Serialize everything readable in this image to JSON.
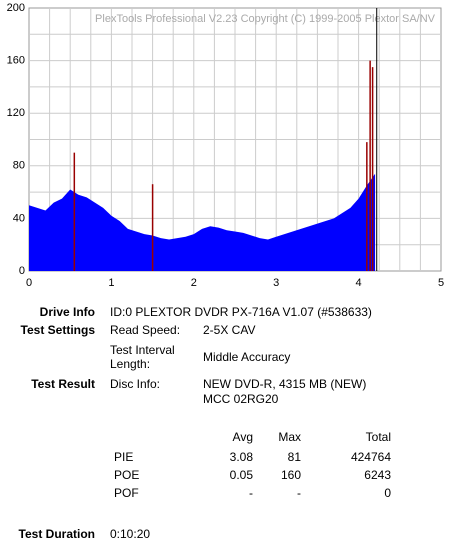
{
  "chart_data": {
    "type": "area",
    "watermark": "PlexTools Professional V2.23 Copyright (C) 1999-2005 Plextor SA/NV",
    "xlim": [
      0,
      5
    ],
    "xticks": [
      0,
      1,
      2,
      3,
      4,
      5
    ],
    "ylim": [
      0,
      200
    ],
    "yticks": [
      0,
      40,
      80,
      120,
      160,
      200
    ],
    "xgrid": [
      0.25,
      0.5,
      0.75,
      1,
      1.25,
      1.5,
      1.75,
      2,
      2.25,
      2.5,
      2.75,
      3,
      3.25,
      3.5,
      3.75,
      4,
      4.25,
      4.5,
      4.75
    ],
    "ygrid": [
      20,
      40,
      60,
      80,
      100,
      120,
      140,
      160,
      180
    ],
    "cursor_x": 4.22,
    "series": [
      {
        "color": "#0000ff",
        "x": [
          0,
          0.1,
          0.2,
          0.3,
          0.4,
          0.5,
          0.6,
          0.7,
          0.8,
          0.9,
          1,
          1.1,
          1.2,
          1.3,
          1.4,
          1.5,
          1.6,
          1.7,
          1.8,
          1.9,
          2,
          2.1,
          2.2,
          2.3,
          2.4,
          2.5,
          2.6,
          2.7,
          2.8,
          2.9,
          3,
          3.1,
          3.2,
          3.3,
          3.4,
          3.5,
          3.6,
          3.7,
          3.8,
          3.9,
          4,
          4.1,
          4.2
        ],
        "values": [
          50,
          48,
          46,
          52,
          55,
          62,
          58,
          56,
          52,
          48,
          42,
          38,
          32,
          30,
          28,
          27,
          25,
          24,
          25,
          26,
          28,
          32,
          34,
          33,
          31,
          30,
          29,
          27,
          25,
          24,
          26,
          28,
          30,
          32,
          34,
          36,
          38,
          40,
          44,
          48,
          55,
          65,
          74
        ]
      },
      {
        "color": "#990000",
        "x": [
          0.55,
          1.5,
          4.1,
          4.14,
          4.17
        ],
        "values": [
          90,
          66,
          98,
          160,
          155
        ]
      }
    ]
  },
  "report": {
    "drive_info": {
      "label": "Drive Info",
      "value": "ID:0 PLEXTOR DVDR PX-716A V1.07 (#538633)"
    },
    "test_settings": {
      "label": "Test Settings",
      "read_speed_label": "Read Speed:",
      "read_speed": "2-5X CAV",
      "interval_label": "Test Interval Length:",
      "interval": "Middle Accuracy"
    },
    "test_result": {
      "label": "Test Result",
      "disc_info_label": "Disc Info:",
      "disc_info": "NEW DVD-R, 4315 MB (NEW)",
      "disc_id": "MCC 02RG20"
    },
    "stats": {
      "header": [
        "Avg",
        "Max",
        "Total"
      ],
      "rows": [
        [
          "PIE",
          "3.08",
          "81",
          "424764"
        ],
        [
          "POE",
          "0.05",
          "160",
          "6243"
        ],
        [
          "POF",
          "-",
          "-",
          "0"
        ]
      ]
    },
    "duration": {
      "label": "Test Duration",
      "value": "0:10:20"
    }
  }
}
